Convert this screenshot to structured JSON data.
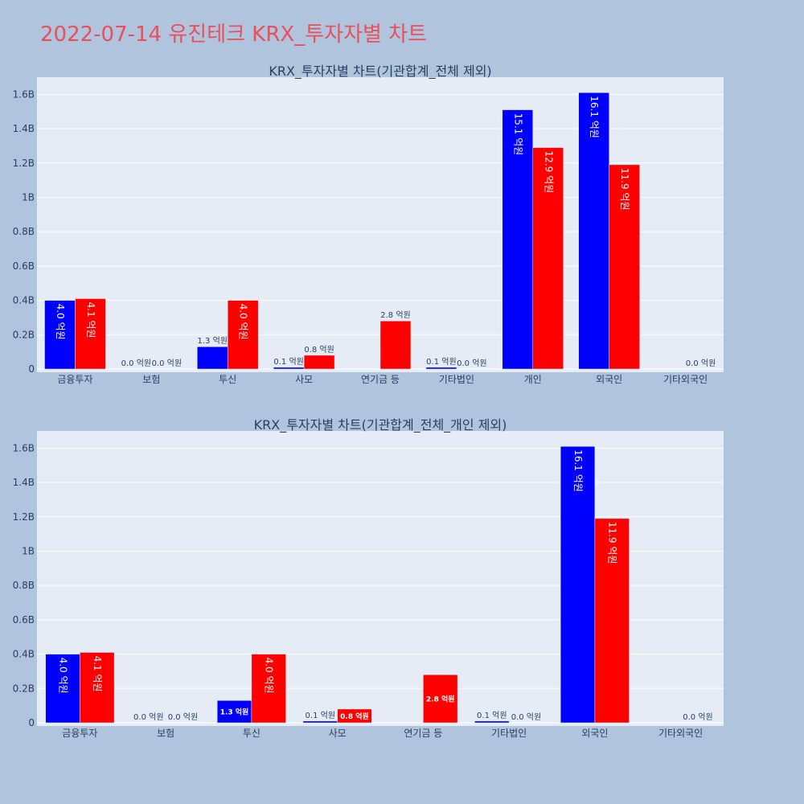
{
  "page": {
    "title": "2022-07-14 유진테크 KRX_투자자별 차트",
    "title_color": "#e8505b",
    "background": "#b0c4de"
  },
  "chart_data": [
    {
      "type": "bar",
      "title": "KRX_투자자별 차트(기관합계_전체 제외)",
      "categories": [
        "금융투자",
        "보험",
        "투신",
        "사모",
        "연기금 등",
        "기타법인",
        "개인",
        "외국인",
        "기타외국인"
      ],
      "series": [
        {
          "color": "#0000ff",
          "values": [
            400000000,
            0,
            130000000,
            10000000,
            0,
            10000000,
            1510000000,
            1610000000,
            0
          ],
          "labels": [
            "4.0 억원",
            "0.0 억원",
            "1.3 억원",
            "0.1 억원",
            "",
            "0.1 억원",
            "15.1 억원",
            "16.1 억원",
            ""
          ]
        },
        {
          "color": "#ff0000",
          "values": [
            410000000,
            0,
            400000000,
            80000000,
            280000000,
            0,
            1290000000,
            1190000000,
            0
          ],
          "labels": [
            "4.1 억원",
            "0.0 억원",
            "4.0 억원",
            "0.8 억원",
            "2.8 억원",
            "0.0 억원",
            "12.9 억원",
            "11.9 억원",
            "0.0 억원"
          ]
        }
      ],
      "ylim": [
        0,
        1700000000
      ],
      "yticks": [
        0,
        200000000,
        400000000,
        600000000,
        800000000,
        1000000000,
        1200000000,
        1400000000,
        1600000000
      ],
      "ytick_labels": [
        "0",
        "0.2B",
        "0.4B",
        "0.6B",
        "0.8B",
        "1B",
        "1.2B",
        "1.4B",
        "1.6B"
      ],
      "grid": true,
      "legend": "none"
    },
    {
      "type": "bar",
      "title": "KRX_투자자별 차트(기관합계_전체_개인 제외)",
      "categories": [
        "금융투자",
        "보험",
        "투신",
        "사모",
        "연기금 등",
        "기타법인",
        "외국인",
        "기타외국인"
      ],
      "series": [
        {
          "color": "#0000ff",
          "values": [
            400000000,
            0,
            130000000,
            10000000,
            0,
            10000000,
            1610000000,
            0
          ],
          "labels": [
            "4.0 억원",
            "0.0 억원",
            "1.3 억원",
            "0.1 억원",
            "",
            "0.1 억원",
            "16.1 억원",
            ""
          ]
        },
        {
          "color": "#ff0000",
          "values": [
            410000000,
            0,
            400000000,
            80000000,
            280000000,
            0,
            1190000000,
            0
          ],
          "labels": [
            "4.1 억원",
            "0.0 억원",
            "4.0 억원",
            "0.8 억원",
            "2.8 억원",
            "0.0 억원",
            "11.9 억원",
            "0.0 억원"
          ]
        }
      ],
      "ylim": [
        0,
        1700000000
      ],
      "yticks": [
        0,
        200000000,
        400000000,
        600000000,
        800000000,
        1000000000,
        1200000000,
        1400000000,
        1600000000
      ],
      "ytick_labels": [
        "0",
        "0.2B",
        "0.4B",
        "0.6B",
        "0.8B",
        "1B",
        "1.2B",
        "1.4B",
        "1.6B"
      ],
      "grid": true,
      "legend": "none"
    }
  ]
}
